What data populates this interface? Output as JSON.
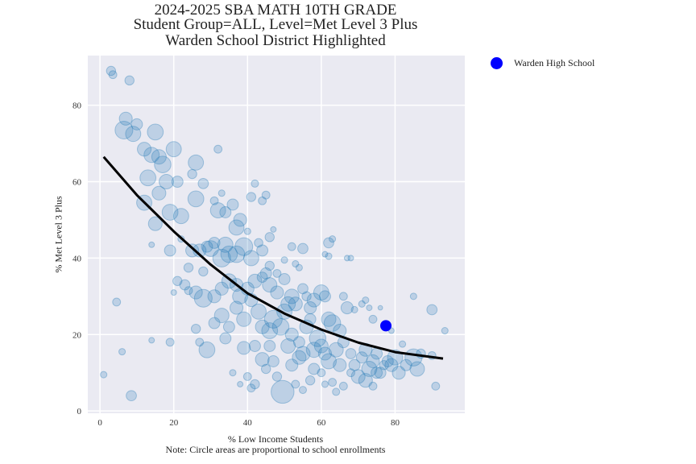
{
  "chart_data": {
    "type": "scatter",
    "title": [
      "2024-2025 SBA MATH 10TH GRADE",
      "Student Group=ALL, Level=Met Level 3 Plus",
      "Warden School District Highlighted"
    ],
    "xlabel": "% Low Income Students",
    "ylabel": "% Met Level 3 Plus",
    "note": "Note: Circle areas are proportional to school enrollments",
    "xlim": [
      -3.3,
      98.9
    ],
    "ylim": [
      -0.6,
      93
    ],
    "xticks": [
      0,
      20,
      40,
      60,
      80
    ],
    "yticks": [
      0,
      20,
      40,
      60,
      80
    ],
    "grid": true,
    "legend_position": "outside-top-right",
    "colors": {
      "schools": "#1f77b4",
      "highlight": "#0000ff",
      "trend": "#000000",
      "background": "#eaeaf2"
    },
    "highlight": {
      "name": "Warden High School",
      "x": 77.5,
      "y": 22.3
    },
    "trend_line": {
      "x": [
        1,
        10,
        20,
        30,
        40,
        50,
        60,
        70,
        80,
        93
      ],
      "y": [
        66.5,
        56.5,
        47,
        38.3,
        30.8,
        25.5,
        21.3,
        17.9,
        15.4,
        13.7
      ]
    },
    "points": [
      [
        3,
        89,
        40
      ],
      [
        3.5,
        88,
        30
      ],
      [
        8,
        86.5,
        40
      ],
      [
        7,
        76.5,
        80
      ],
      [
        6.5,
        73.5,
        150
      ],
      [
        9,
        72.5,
        110
      ],
      [
        10,
        75,
        60
      ],
      [
        12,
        68.5,
        90
      ],
      [
        14,
        67,
        110
      ],
      [
        16,
        66.5,
        100
      ],
      [
        15,
        73,
        120
      ],
      [
        20,
        68.5,
        110
      ],
      [
        17,
        64.5,
        130
      ],
      [
        18,
        60,
        100
      ],
      [
        13,
        61,
        120
      ],
      [
        16,
        57,
        90
      ],
      [
        12,
        54.5,
        110
      ],
      [
        15,
        49,
        90
      ],
      [
        19,
        52,
        120
      ],
      [
        21,
        60,
        60
      ],
      [
        22,
        51,
        110
      ],
      [
        26,
        55.5,
        120
      ],
      [
        26,
        65,
        110
      ],
      [
        25,
        62,
        40
      ],
      [
        28,
        59.5,
        50
      ],
      [
        32,
        68.5,
        30
      ],
      [
        33,
        57,
        20
      ],
      [
        31,
        55,
        30
      ],
      [
        32,
        52.5,
        110
      ],
      [
        34,
        52,
        60
      ],
      [
        36,
        54,
        60
      ],
      [
        37,
        48,
        110
      ],
      [
        38,
        50,
        80
      ],
      [
        41,
        56,
        40
      ],
      [
        42,
        59.5,
        25
      ],
      [
        44,
        55,
        30
      ],
      [
        45,
        56.5,
        30
      ],
      [
        40,
        47,
        20
      ],
      [
        47,
        47.5,
        15
      ],
      [
        43,
        44,
        35
      ],
      [
        46,
        45.5,
        40
      ],
      [
        52,
        43,
        30
      ],
      [
        55,
        42.5,
        50
      ],
      [
        62,
        44,
        50
      ],
      [
        63,
        45,
        20
      ],
      [
        61,
        41,
        15
      ],
      [
        62,
        40.5,
        20
      ],
      [
        67,
        40,
        15
      ],
      [
        68,
        40,
        15
      ],
      [
        14,
        43.5,
        15
      ],
      [
        19,
        42,
        60
      ],
      [
        22,
        45,
        20
      ],
      [
        25,
        42,
        80
      ],
      [
        24,
        37.5,
        40
      ],
      [
        27,
        42,
        80
      ],
      [
        30,
        42.5,
        120
      ],
      [
        33,
        40,
        150
      ],
      [
        35,
        41,
        130
      ],
      [
        28,
        36.5,
        40
      ],
      [
        29,
        43,
        60
      ],
      [
        31,
        44,
        60
      ],
      [
        34,
        43.5,
        110
      ],
      [
        37,
        41,
        130
      ],
      [
        39,
        43,
        150
      ],
      [
        41,
        40,
        110
      ],
      [
        44,
        42,
        60
      ],
      [
        46,
        38,
        40
      ],
      [
        48,
        36,
        30
      ],
      [
        50,
        39.5,
        20
      ],
      [
        50,
        34.5,
        60
      ],
      [
        53,
        38.5,
        20
      ],
      [
        54,
        37.5,
        20
      ],
      [
        21,
        34,
        40
      ],
      [
        23,
        33,
        50
      ],
      [
        20,
        31,
        15
      ],
      [
        26,
        31,
        80
      ],
      [
        24,
        31.5,
        30
      ],
      [
        28,
        29.5,
        150
      ],
      [
        31,
        30,
        80
      ],
      [
        33,
        32,
        80
      ],
      [
        35,
        34,
        100
      ],
      [
        37,
        33,
        80
      ],
      [
        38,
        30,
        110
      ],
      [
        40,
        32,
        80
      ],
      [
        42,
        34,
        90
      ],
      [
        44,
        35,
        50
      ],
      [
        45,
        36,
        60
      ],
      [
        46,
        33,
        100
      ],
      [
        48,
        31,
        80
      ],
      [
        52,
        30,
        100
      ],
      [
        53,
        28,
        90
      ],
      [
        55,
        32,
        50
      ],
      [
        56,
        30,
        40
      ],
      [
        57,
        27,
        70
      ],
      [
        58,
        29,
        90
      ],
      [
        60,
        31,
        110
      ],
      [
        61,
        30,
        60
      ],
      [
        62,
        24,
        100
      ],
      [
        63,
        23,
        130
      ],
      [
        65,
        21,
        80
      ],
      [
        66,
        30,
        30
      ],
      [
        67,
        27,
        70
      ],
      [
        69,
        26.5,
        20
      ],
      [
        71,
        28,
        20
      ],
      [
        72,
        29,
        20
      ],
      [
        74,
        24,
        30
      ],
      [
        73,
        27,
        15
      ],
      [
        76,
        27,
        10
      ],
      [
        4.5,
        28.5,
        30
      ],
      [
        6,
        15.5,
        20
      ],
      [
        1,
        9.5,
        20
      ],
      [
        8.5,
        4,
        50
      ],
      [
        14,
        18.5,
        15
      ],
      [
        19,
        18,
        30
      ],
      [
        27,
        18,
        30
      ],
      [
        26,
        21.5,
        40
      ],
      [
        29,
        16,
        120
      ],
      [
        31,
        23,
        60
      ],
      [
        33,
        25,
        100
      ],
      [
        34,
        19,
        60
      ],
      [
        35,
        22,
        60
      ],
      [
        37,
        27,
        80
      ],
      [
        39,
        24,
        100
      ],
      [
        41,
        29,
        80
      ],
      [
        43,
        26,
        110
      ],
      [
        44,
        22,
        90
      ],
      [
        46,
        21,
        120
      ],
      [
        47,
        24,
        150
      ],
      [
        49,
        22,
        130
      ],
      [
        50,
        26,
        110
      ],
      [
        51,
        28,
        100
      ],
      [
        52,
        20,
        80
      ],
      [
        54,
        18,
        60
      ],
      [
        55,
        15,
        100
      ],
      [
        56,
        22,
        90
      ],
      [
        57,
        24,
        60
      ],
      [
        58,
        16,
        110
      ],
      [
        59,
        19,
        130
      ],
      [
        60,
        17,
        90
      ],
      [
        61,
        15,
        80
      ],
      [
        62,
        13,
        110
      ],
      [
        64,
        16,
        100
      ],
      [
        65,
        12,
        80
      ],
      [
        66,
        18,
        60
      ],
      [
        68,
        15,
        50
      ],
      [
        69,
        12,
        60
      ],
      [
        70,
        9,
        90
      ],
      [
        71,
        14,
        60
      ],
      [
        72,
        16,
        80
      ],
      [
        73,
        11,
        110
      ],
      [
        74,
        13,
        80
      ],
      [
        75,
        15,
        60
      ],
      [
        76,
        10,
        60
      ],
      [
        77,
        12,
        40
      ],
      [
        78,
        13,
        60
      ],
      [
        79,
        12,
        80
      ],
      [
        80,
        14,
        110
      ],
      [
        81,
        10,
        80
      ],
      [
        83,
        12,
        60
      ],
      [
        85,
        14,
        140
      ],
      [
        86,
        11,
        100
      ],
      [
        87,
        15,
        40
      ],
      [
        90,
        14.5,
        30
      ],
      [
        90,
        26.5,
        50
      ],
      [
        93.5,
        21,
        20
      ],
      [
        91,
        6.5,
        30
      ],
      [
        85,
        30,
        20
      ],
      [
        82,
        17.5,
        20
      ],
      [
        79,
        21,
        15
      ],
      [
        49.5,
        5,
        250
      ],
      [
        44,
        13.5,
        90
      ],
      [
        42,
        17,
        60
      ],
      [
        39,
        16.5,
        80
      ],
      [
        40,
        9,
        30
      ],
      [
        41,
        6,
        30
      ],
      [
        42,
        7,
        40
      ],
      [
        45,
        11,
        40
      ],
      [
        47,
        13,
        60
      ],
      [
        52,
        12,
        70
      ],
      [
        53,
        7,
        30
      ],
      [
        55,
        5.5,
        25
      ],
      [
        57,
        8,
        40
      ],
      [
        58,
        11,
        60
      ],
      [
        60,
        10,
        30
      ],
      [
        61,
        7,
        20
      ],
      [
        63,
        7.5,
        30
      ],
      [
        64,
        5,
        25
      ],
      [
        66,
        6.5,
        30
      ],
      [
        68,
        10,
        30
      ],
      [
        72,
        8,
        90
      ],
      [
        74,
        6.5,
        30
      ],
      [
        75,
        10,
        60
      ],
      [
        36,
        10,
        20
      ],
      [
        38,
        7,
        15
      ],
      [
        48,
        9,
        40
      ],
      [
        51,
        17,
        100
      ],
      [
        54,
        14,
        90
      ],
      [
        46,
        17,
        60
      ]
    ]
  }
}
